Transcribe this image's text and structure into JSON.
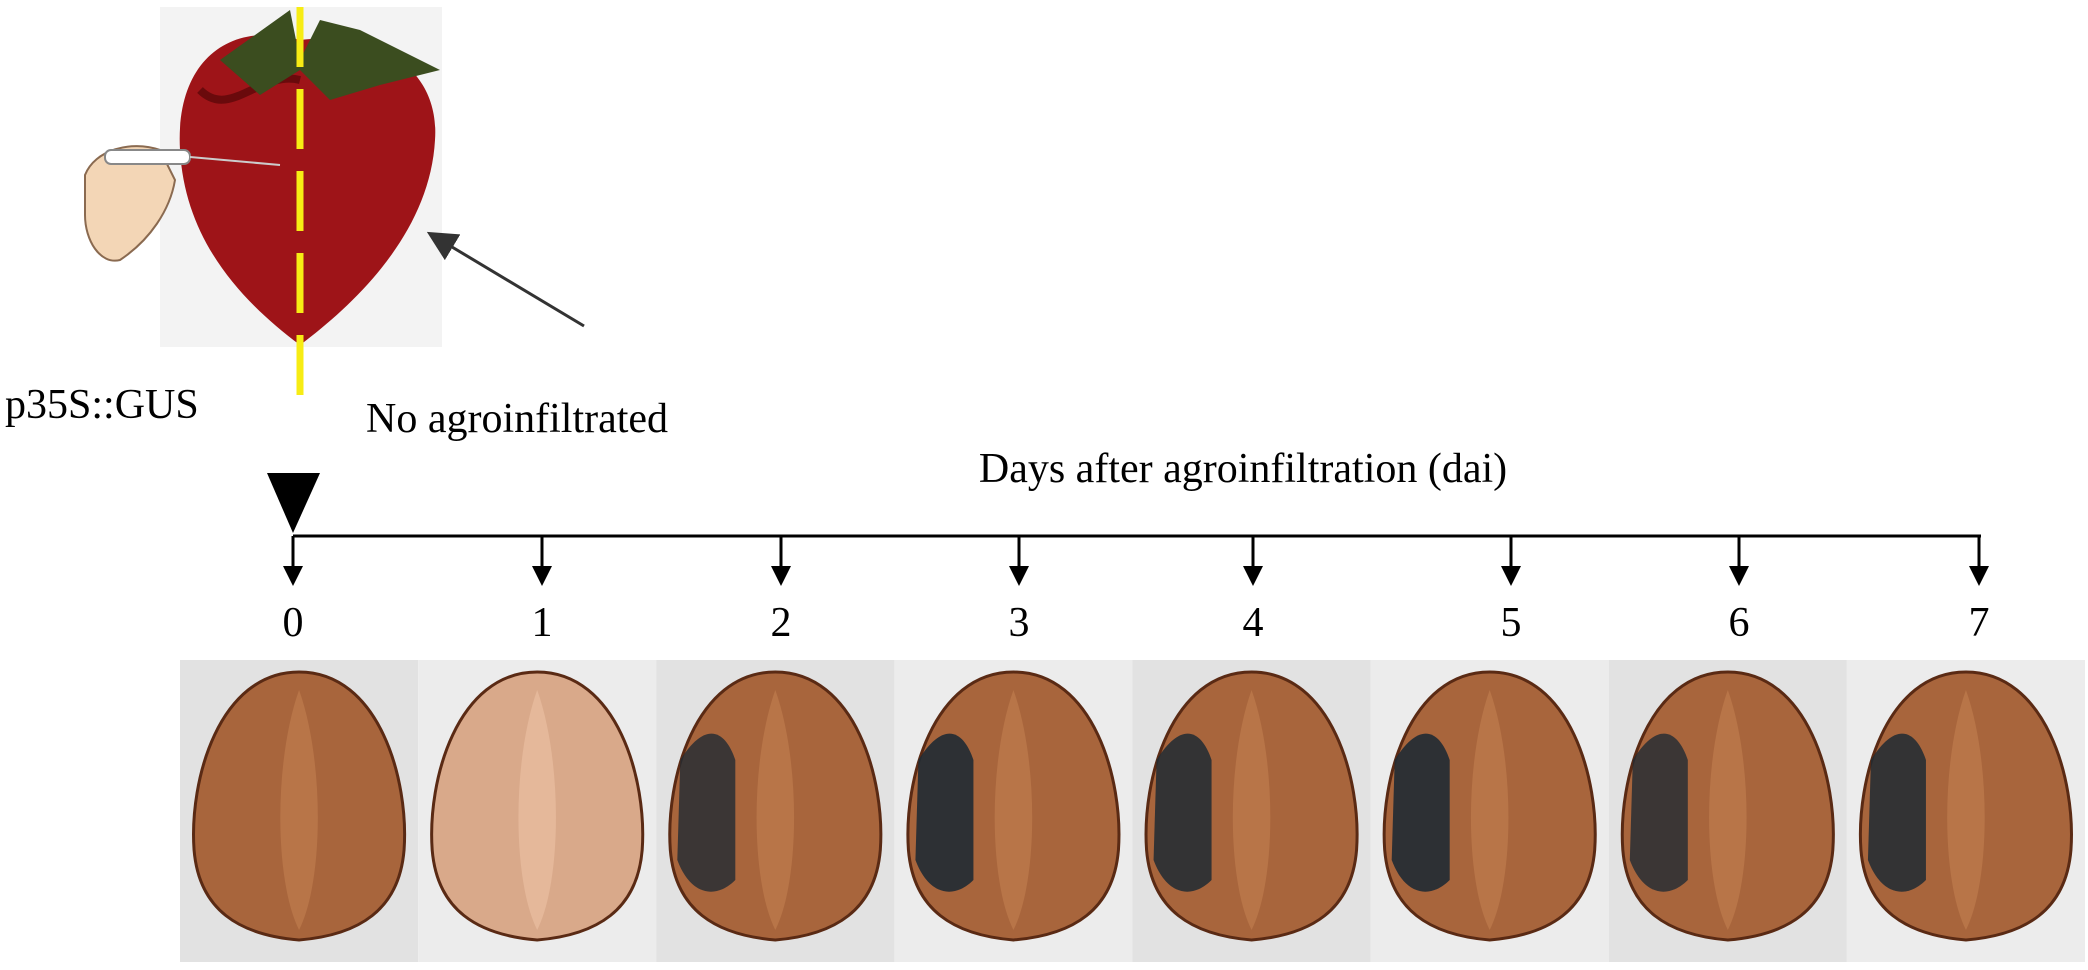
{
  "infiltration": {
    "construct_label": "p35S::GUS",
    "control_label": "No agroinfiltrated"
  },
  "timeline": {
    "title": "Days after agroinfiltration  (dai)",
    "days": [
      "0",
      "1",
      "2",
      "3",
      "4",
      "5",
      "6",
      "7"
    ]
  }
}
